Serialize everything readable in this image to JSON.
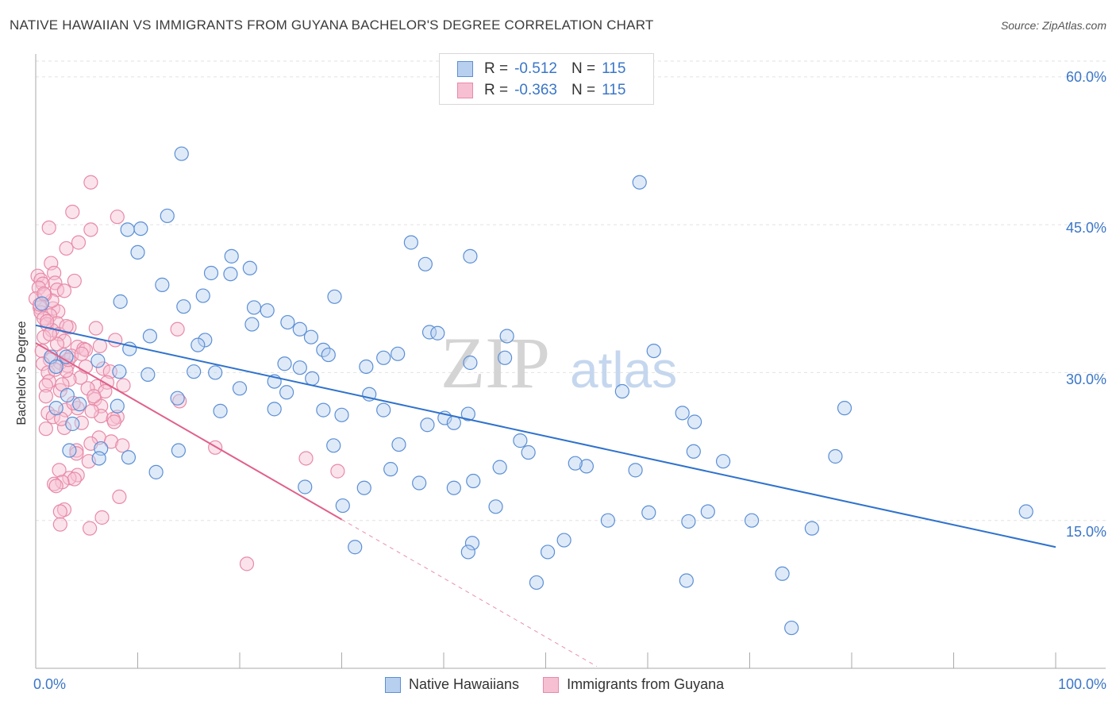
{
  "title": "NATIVE HAWAIIAN VS IMMIGRANTS FROM GUYANA BACHELOR'S DEGREE CORRELATION CHART",
  "source": "Source: ZipAtlas.com",
  "watermark": {
    "zip": "ZIP",
    "atlas": "atlas"
  },
  "legend_top": [
    {
      "r_label": "R =",
      "r_value": "-0.512",
      "n_label": "N =",
      "n_value": "115"
    },
    {
      "r_label": "R =",
      "r_value": "-0.363",
      "n_label": "N =",
      "n_value": "115"
    }
  ],
  "colors": {
    "blue": "#5b8fd6",
    "blue_fill": "#b8d0f0",
    "blue_line": "#2f72cc",
    "pink": "#e88aa8",
    "pink_fill": "#f6c0d2",
    "pink_line": "#e0608a",
    "grid": "#e2e2e2",
    "axis_text": "#3a76c8"
  },
  "chart_data": {
    "type": "scatter",
    "title": "NATIVE HAWAIIAN VS IMMIGRANTS FROM GUYANA BACHELOR'S DEGREE CORRELATION CHART",
    "xlabel": "",
    "ylabel": "Bachelor's Degree",
    "xlim": [
      0,
      100
    ],
    "ylim": [
      0,
      62
    ],
    "x_tick_labels": [
      "0.0%",
      "100.0%"
    ],
    "y_ticks": [
      15,
      30,
      45,
      60
    ],
    "y_tick_labels": [
      "15.0%",
      "30.0%",
      "45.0%",
      "60.0%"
    ],
    "legend_position": "bottom",
    "series": [
      {
        "name": "Native Hawaiians",
        "r": -0.512,
        "n": 115,
        "trend": {
          "x": [
            0,
            100
          ],
          "y": [
            34.8,
            12.3
          ]
        },
        "points": [
          [
            14.3,
            52.2
          ],
          [
            59.2,
            49.3
          ],
          [
            12.9,
            45.9
          ],
          [
            10.3,
            44.6
          ],
          [
            9.0,
            44.5
          ],
          [
            36.8,
            43.2
          ],
          [
            10.0,
            42.2
          ],
          [
            19.2,
            41.8
          ],
          [
            42.6,
            41.8
          ],
          [
            21.0,
            40.6
          ],
          [
            38.2,
            41.0
          ],
          [
            17.2,
            40.1
          ],
          [
            19.1,
            40.0
          ],
          [
            12.4,
            38.9
          ],
          [
            16.4,
            37.8
          ],
          [
            29.3,
            37.7
          ],
          [
            8.3,
            37.2
          ],
          [
            14.5,
            36.7
          ],
          [
            21.4,
            36.6
          ],
          [
            22.7,
            36.3
          ],
          [
            0.6,
            37.0
          ],
          [
            24.7,
            35.1
          ],
          [
            21.2,
            34.9
          ],
          [
            25.9,
            34.4
          ],
          [
            38.6,
            34.1
          ],
          [
            39.4,
            34.0
          ],
          [
            46.2,
            33.7
          ],
          [
            11.2,
            33.7
          ],
          [
            16.6,
            33.3
          ],
          [
            27.0,
            33.6
          ],
          [
            15.9,
            32.8
          ],
          [
            9.2,
            32.4
          ],
          [
            28.2,
            32.3
          ],
          [
            60.6,
            32.2
          ],
          [
            28.7,
            31.8
          ],
          [
            46.0,
            31.5
          ],
          [
            35.5,
            31.9
          ],
          [
            1.5,
            31.6
          ],
          [
            34.1,
            31.5
          ],
          [
            3.0,
            31.6
          ],
          [
            24.4,
            30.9
          ],
          [
            42.6,
            31.0
          ],
          [
            6.1,
            31.2
          ],
          [
            32.4,
            30.6
          ],
          [
            2.0,
            30.6
          ],
          [
            25.9,
            30.5
          ],
          [
            8.2,
            30.1
          ],
          [
            15.5,
            30.1
          ],
          [
            17.6,
            30.0
          ],
          [
            11.0,
            29.8
          ],
          [
            27.1,
            29.4
          ],
          [
            23.4,
            29.1
          ],
          [
            20.0,
            28.4
          ],
          [
            24.6,
            28.0
          ],
          [
            32.7,
            27.8
          ],
          [
            57.5,
            28.1
          ],
          [
            3.1,
            27.7
          ],
          [
            4.3,
            26.8
          ],
          [
            13.9,
            27.4
          ],
          [
            8.0,
            26.6
          ],
          [
            2.0,
            26.4
          ],
          [
            23.4,
            26.3
          ],
          [
            28.2,
            26.2
          ],
          [
            18.1,
            26.1
          ],
          [
            34.1,
            26.2
          ],
          [
            30.0,
            25.7
          ],
          [
            40.1,
            25.4
          ],
          [
            42.4,
            25.8
          ],
          [
            63.4,
            25.9
          ],
          [
            79.3,
            26.4
          ],
          [
            41.0,
            24.9
          ],
          [
            64.6,
            25.0
          ],
          [
            3.6,
            24.8
          ],
          [
            47.5,
            23.1
          ],
          [
            35.6,
            22.7
          ],
          [
            29.2,
            22.6
          ],
          [
            3.3,
            22.1
          ],
          [
            14.0,
            22.1
          ],
          [
            6.4,
            22.3
          ],
          [
            64.5,
            22.0
          ],
          [
            6.2,
            21.3
          ],
          [
            9.1,
            21.4
          ],
          [
            54.0,
            20.5
          ],
          [
            45.5,
            20.4
          ],
          [
            34.8,
            20.2
          ],
          [
            58.8,
            20.1
          ],
          [
            67.4,
            21.0
          ],
          [
            78.4,
            21.5
          ],
          [
            11.8,
            19.9
          ],
          [
            42.9,
            19.0
          ],
          [
            37.6,
            18.8
          ],
          [
            26.4,
            18.4
          ],
          [
            32.2,
            18.3
          ],
          [
            41.0,
            18.3
          ],
          [
            45.1,
            16.4
          ],
          [
            30.1,
            16.5
          ],
          [
            60.1,
            15.8
          ],
          [
            65.9,
            15.9
          ],
          [
            56.1,
            15.0
          ],
          [
            64.0,
            14.9
          ],
          [
            70.2,
            15.0
          ],
          [
            76.1,
            14.2
          ],
          [
            97.1,
            15.9
          ],
          [
            51.8,
            13.0
          ],
          [
            42.8,
            12.7
          ],
          [
            31.3,
            12.3
          ],
          [
            42.4,
            11.8
          ],
          [
            50.2,
            11.8
          ],
          [
            63.8,
            8.9
          ],
          [
            49.1,
            8.7
          ],
          [
            73.2,
            9.6
          ],
          [
            74.1,
            4.1
          ],
          [
            48.3,
            21.9
          ],
          [
            52.9,
            20.8
          ],
          [
            38.4,
            24.7
          ]
        ]
      },
      {
        "name": "Immigrants from Guyana",
        "r": -0.363,
        "n": 115,
        "trend": {
          "x": [
            0,
            30
          ],
          "y": [
            33.0,
            15.1
          ]
        },
        "trend_dashed": {
          "x": [
            30,
            55
          ],
          "y": [
            15.1,
            0.2
          ]
        },
        "points": [
          [
            5.4,
            49.3
          ],
          [
            3.6,
            46.3
          ],
          [
            8.0,
            45.8
          ],
          [
            1.3,
            44.7
          ],
          [
            5.4,
            44.5
          ],
          [
            4.2,
            43.2
          ],
          [
            3.0,
            42.6
          ],
          [
            1.5,
            41.1
          ],
          [
            1.8,
            40.1
          ],
          [
            0.2,
            39.8
          ],
          [
            3.8,
            39.3
          ],
          [
            0.5,
            39.4
          ],
          [
            0.7,
            39.0
          ],
          [
            1.9,
            39.1
          ],
          [
            2.1,
            38.4
          ],
          [
            0.3,
            38.6
          ],
          [
            2.8,
            38.3
          ],
          [
            0.0,
            37.5
          ],
          [
            0.4,
            36.6
          ],
          [
            1.7,
            36.5
          ],
          [
            2.2,
            36.2
          ],
          [
            0.5,
            36.1
          ],
          [
            1.4,
            35.8
          ],
          [
            0.8,
            35.5
          ],
          [
            1.1,
            34.9
          ],
          [
            2.1,
            35.0
          ],
          [
            3.3,
            34.6
          ],
          [
            5.9,
            34.5
          ],
          [
            13.9,
            34.4
          ],
          [
            1.6,
            34.3
          ],
          [
            2.3,
            33.9
          ],
          [
            0.8,
            33.6
          ],
          [
            7.8,
            33.3
          ],
          [
            2.8,
            33.2
          ],
          [
            4.1,
            32.6
          ],
          [
            0.6,
            32.2
          ],
          [
            4.7,
            32.4
          ],
          [
            4.9,
            32.3
          ],
          [
            2.7,
            31.8
          ],
          [
            3.5,
            31.7
          ],
          [
            1.4,
            31.3
          ],
          [
            2.4,
            31.0
          ],
          [
            0.7,
            30.9
          ],
          [
            3.1,
            30.7
          ],
          [
            6.6,
            30.4
          ],
          [
            7.3,
            30.1
          ],
          [
            1.2,
            30.0
          ],
          [
            4.4,
            29.5
          ],
          [
            3.3,
            29.3
          ],
          [
            1.3,
            29.1
          ],
          [
            1.0,
            28.7
          ],
          [
            6.0,
            28.6
          ],
          [
            5.1,
            28.4
          ],
          [
            2.4,
            28.2
          ],
          [
            1.0,
            27.6
          ],
          [
            5.8,
            27.3
          ],
          [
            14.1,
            27.1
          ],
          [
            6.4,
            26.6
          ],
          [
            4.1,
            26.4
          ],
          [
            2.9,
            26.2
          ],
          [
            1.2,
            25.9
          ],
          [
            1.7,
            25.5
          ],
          [
            6.4,
            25.6
          ],
          [
            8.0,
            25.5
          ],
          [
            7.6,
            25.3
          ],
          [
            7.7,
            25.0
          ],
          [
            4.5,
            24.9
          ],
          [
            2.8,
            24.4
          ],
          [
            1.0,
            24.3
          ],
          [
            6.2,
            23.4
          ],
          [
            7.4,
            23.0
          ],
          [
            5.4,
            22.8
          ],
          [
            8.5,
            22.6
          ],
          [
            17.6,
            22.4
          ],
          [
            4.0,
            22.1
          ],
          [
            4.0,
            21.8
          ],
          [
            26.5,
            21.3
          ],
          [
            5.2,
            21.0
          ],
          [
            2.3,
            20.1
          ],
          [
            29.6,
            20.0
          ],
          [
            4.1,
            19.6
          ],
          [
            3.3,
            19.3
          ],
          [
            3.8,
            19.2
          ],
          [
            2.6,
            18.9
          ],
          [
            1.8,
            18.7
          ],
          [
            2.0,
            18.5
          ],
          [
            8.2,
            17.4
          ],
          [
            2.8,
            16.1
          ],
          [
            2.4,
            15.9
          ],
          [
            6.5,
            15.3
          ],
          [
            2.4,
            14.6
          ],
          [
            5.3,
            14.2
          ],
          [
            20.7,
            10.6
          ],
          [
            2.1,
            32.9
          ],
          [
            3.0,
            30.2
          ],
          [
            4.5,
            31.9
          ],
          [
            1.6,
            37.3
          ],
          [
            0.9,
            37.9
          ],
          [
            2.6,
            28.8
          ],
          [
            3.7,
            26.9
          ],
          [
            7.0,
            29.0
          ],
          [
            8.6,
            28.7
          ],
          [
            6.8,
            28.1
          ],
          [
            0.4,
            36.9
          ],
          [
            1.1,
            35.2
          ],
          [
            4.9,
            30.6
          ],
          [
            5.5,
            26.1
          ],
          [
            1.9,
            30.3
          ],
          [
            3.0,
            34.7
          ],
          [
            0.8,
            38.0
          ],
          [
            5.7,
            27.6
          ],
          [
            6.3,
            32.7
          ],
          [
            2.5,
            25.3
          ],
          [
            1.4,
            33.9
          ],
          [
            3.2,
            31.3
          ]
        ]
      }
    ]
  }
}
